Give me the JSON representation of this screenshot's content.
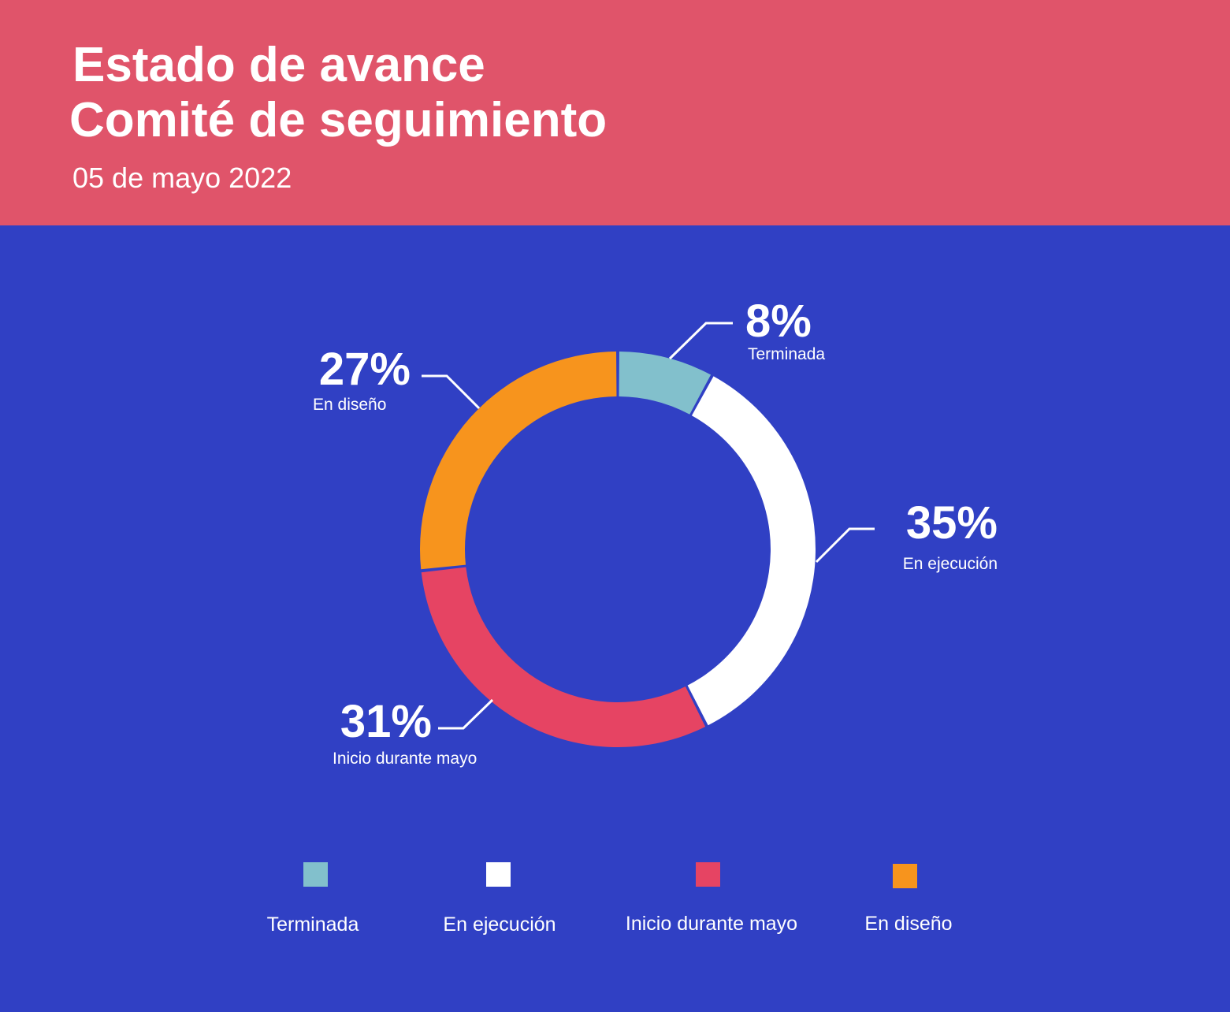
{
  "header": {
    "title_line1": "Estado de avance",
    "title_line2": "Comité de seguimiento",
    "date": "05 de mayo 2022"
  },
  "colors": {
    "header_bg": "#e0546a",
    "body_bg": "#3040c4"
  },
  "chart_data": {
    "type": "pie",
    "style": "donut",
    "title": "Estado de avance Comité de seguimiento",
    "categories": [
      "Terminada",
      "En ejecución",
      "Inicio durante mayo",
      "En diseño"
    ],
    "values": [
      8,
      35,
      31,
      27
    ],
    "value_labels": [
      "8%",
      "35%",
      "31%",
      "27%"
    ],
    "colors": [
      "#82c0cc",
      "#ffffff",
      "#e64463",
      "#f7941d"
    ],
    "legend": "bottom"
  }
}
